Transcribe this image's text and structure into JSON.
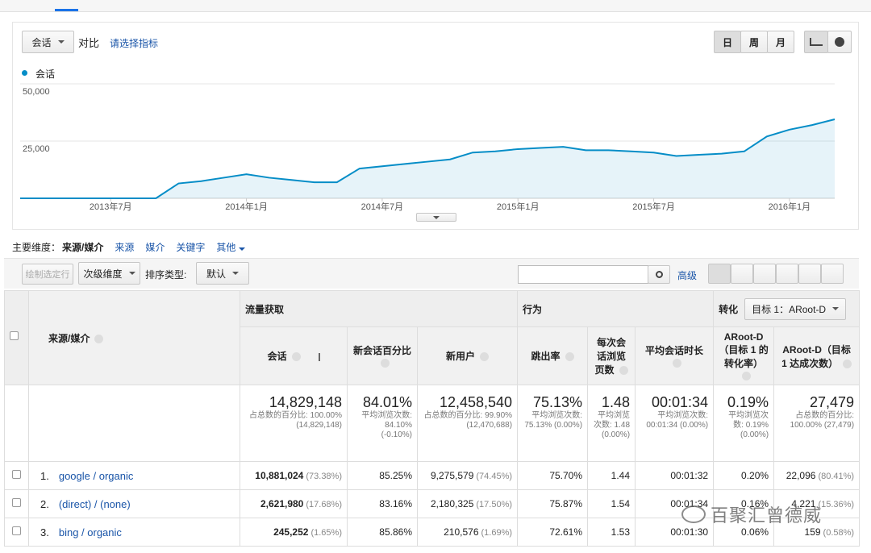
{
  "toolbar": {
    "metric_button": "会话",
    "compare": "对比",
    "select_metric": "请选择指标",
    "periods": [
      "日",
      "周",
      "月"
    ]
  },
  "chart_data": {
    "type": "line",
    "categories": [
      null,
      null,
      null,
      null,
      "2013年7月",
      null,
      null,
      null,
      null,
      null,
      "2014年1月",
      null,
      null,
      null,
      null,
      null,
      "2014年7月",
      null,
      null,
      null,
      null,
      null,
      "2015年1月",
      null,
      null,
      null,
      null,
      null,
      "2015年7月",
      null,
      null,
      null,
      null,
      null,
      "2016年1月",
      null,
      null
    ],
    "series": [
      {
        "name": "会话",
        "color": "#058dc7",
        "values": [
          0,
          0,
          0,
          0,
          0,
          0,
          0,
          6500,
          7500,
          9000,
          10500,
          9000,
          8000,
          7000,
          7000,
          13000,
          14000,
          15000,
          16000,
          17000,
          20000,
          20500,
          21500,
          22000,
          22500,
          21000,
          21000,
          20500,
          20000,
          18500,
          19000,
          19500,
          20500,
          27000,
          30000,
          32000,
          34500
        ]
      }
    ],
    "ylim": [
      0,
      50000
    ],
    "yticks": [
      {
        "value": 25000,
        "label": "25,000"
      },
      {
        "value": 50000,
        "label": "50,000"
      }
    ],
    "grid": true
  },
  "dimensions": {
    "label": "主要维度：",
    "items": [
      "来源/媒介",
      "来源",
      "媒介",
      "关键字",
      "其他"
    ]
  },
  "controls": {
    "plot_rows": "绘制选定行",
    "secondary": "次级维度",
    "sort_label": "排序类型:",
    "sort_value": "默认",
    "advanced": "高级"
  },
  "table": {
    "groups": [
      "流量获取",
      "行为",
      "转化"
    ],
    "goal_select": "目标 1：ARoot-D",
    "dimension_header": "来源/媒介",
    "columns": [
      "会话",
      "新会话百分比",
      "新用户",
      "跳出率",
      "每次会话浏览页数",
      "平均会话时长",
      "ARoot-D（目标 1 的转化率）",
      "ARoot-D（目标 1 达成次数）"
    ],
    "totals": [
      [
        "14,829,148",
        "占总数的百分比: 100.00% (14,829,148)"
      ],
      [
        "84.01%",
        "平均浏览次数: 84.10% (-0.10%)"
      ],
      [
        "12,458,540",
        "占总数的百分比: 99.90% (12,470,688)"
      ],
      [
        "75.13%",
        "平均浏览次数: 75.13% (0.00%)"
      ],
      [
        "1.48",
        "平均浏览次数: 1.48 (0.00%)"
      ],
      [
        "00:01:34",
        "平均浏览次数: 00:01:34 (0.00%)"
      ],
      [
        "0.19%",
        "平均浏览次数: 0.19% (0.00%)"
      ],
      [
        "27,479",
        "占总数的百分比: 100.00% (27,479)"
      ]
    ],
    "rows": [
      {
        "index": "1.",
        "name": "google / organic",
        "cells": [
          [
            "10,881,024",
            "(73.38%)"
          ],
          [
            "85.25%"
          ],
          [
            "9,275,579",
            "(74.45%)"
          ],
          [
            "75.70%"
          ],
          [
            "1.44"
          ],
          [
            "00:01:32"
          ],
          [
            "0.20%"
          ],
          [
            "22,096",
            "(80.41%)"
          ]
        ]
      },
      {
        "index": "2.",
        "name": "(direct) / (none)",
        "cells": [
          [
            "2,621,980",
            "(17.68%)"
          ],
          [
            "83.16%"
          ],
          [
            "2,180,325",
            "(17.50%)"
          ],
          [
            "75.87%"
          ],
          [
            "1.54"
          ],
          [
            "00:01:34"
          ],
          [
            "0.16%"
          ],
          [
            "4,221",
            "(15.36%)"
          ]
        ]
      },
      {
        "index": "3.",
        "name": "bing / organic",
        "cells": [
          [
            "245,252",
            "(1.65%)"
          ],
          [
            "85.86%"
          ],
          [
            "210,576",
            "(1.69%)"
          ],
          [
            "72.61%"
          ],
          [
            "1.53"
          ],
          [
            "00:01:30"
          ],
          [
            "0.06%"
          ],
          [
            "159",
            "(0.58%)"
          ]
        ]
      }
    ]
  },
  "watermark": "百聚汇曾德威"
}
